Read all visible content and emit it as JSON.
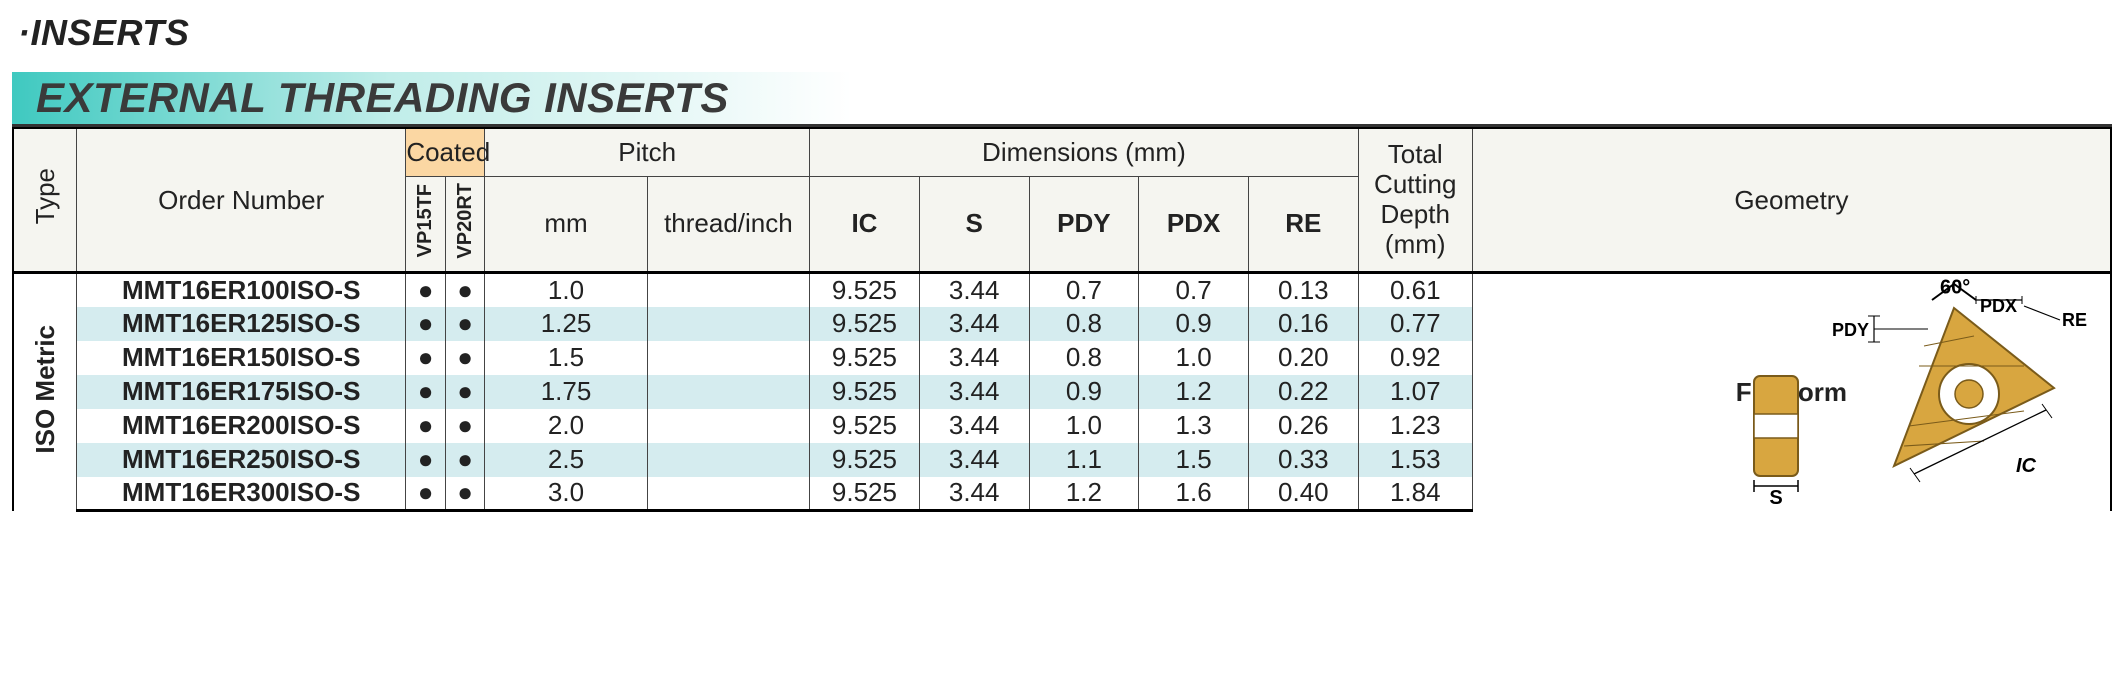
{
  "title": "·INSERTS",
  "section": "EXTERNAL THREADING INSERTS",
  "header": {
    "type": "Type",
    "order": "Order Number",
    "coated": "Coated",
    "grades": [
      "VP15TF",
      "VP20RT"
    ],
    "pitch": "Pitch",
    "pitch_mm": "mm",
    "pitch_tpi": "thread/inch",
    "dims_group": "Dimensions (mm)",
    "dims": [
      "IC",
      "S",
      "PDY",
      "PDX",
      "RE"
    ],
    "tcd": "Total Cutting Depth (mm)",
    "geometry": "Geometry"
  },
  "type_label": "ISO Metric",
  "geometry_label": "Full form",
  "angle_label": "60°",
  "colors": {
    "row_alt": "#d5ecef",
    "row_plain": "#ffffff",
    "coated_bg": "#fbd7a3",
    "banner_start": "#3fc9c0",
    "insert_body": "#d8a640",
    "insert_edge": "#7a5b1a"
  },
  "rows": [
    {
      "order": "MMT16ER100ISO-S",
      "g1": "●",
      "g2": "●",
      "pmm": "1.0",
      "ptpi": "",
      "ic": "9.525",
      "s": "3.44",
      "pdy": "0.7",
      "pdx": "0.7",
      "re": "0.13",
      "tcd": "0.61",
      "alt": false
    },
    {
      "order": "MMT16ER125ISO-S",
      "g1": "●",
      "g2": "●",
      "pmm": "1.25",
      "ptpi": "",
      "ic": "9.525",
      "s": "3.44",
      "pdy": "0.8",
      "pdx": "0.9",
      "re": "0.16",
      "tcd": "0.77",
      "alt": true
    },
    {
      "order": "MMT16ER150ISO-S",
      "g1": "●",
      "g2": "●",
      "pmm": "1.5",
      "ptpi": "",
      "ic": "9.525",
      "s": "3.44",
      "pdy": "0.8",
      "pdx": "1.0",
      "re": "0.20",
      "tcd": "0.92",
      "alt": false
    },
    {
      "order": "MMT16ER175ISO-S",
      "g1": "●",
      "g2": "●",
      "pmm": "1.75",
      "ptpi": "",
      "ic": "9.525",
      "s": "3.44",
      "pdy": "0.9",
      "pdx": "1.2",
      "re": "0.22",
      "tcd": "1.07",
      "alt": true
    },
    {
      "order": "MMT16ER200ISO-S",
      "g1": "●",
      "g2": "●",
      "pmm": "2.0",
      "ptpi": "",
      "ic": "9.525",
      "s": "3.44",
      "pdy": "1.0",
      "pdx": "1.3",
      "re": "0.26",
      "tcd": "1.23",
      "alt": false
    },
    {
      "order": "MMT16ER250ISO-S",
      "g1": "●",
      "g2": "●",
      "pmm": "2.5",
      "ptpi": "",
      "ic": "9.525",
      "s": "3.44",
      "pdy": "1.1",
      "pdx": "1.5",
      "re": "0.33",
      "tcd": "1.53",
      "alt": true
    },
    {
      "order": "MMT16ER300ISO-S",
      "g1": "●",
      "g2": "●",
      "pmm": "3.0",
      "ptpi": "",
      "ic": "9.525",
      "s": "3.44",
      "pdy": "1.2",
      "pdx": "1.6",
      "re": "0.40",
      "tcd": "1.84",
      "alt": false
    }
  ]
}
